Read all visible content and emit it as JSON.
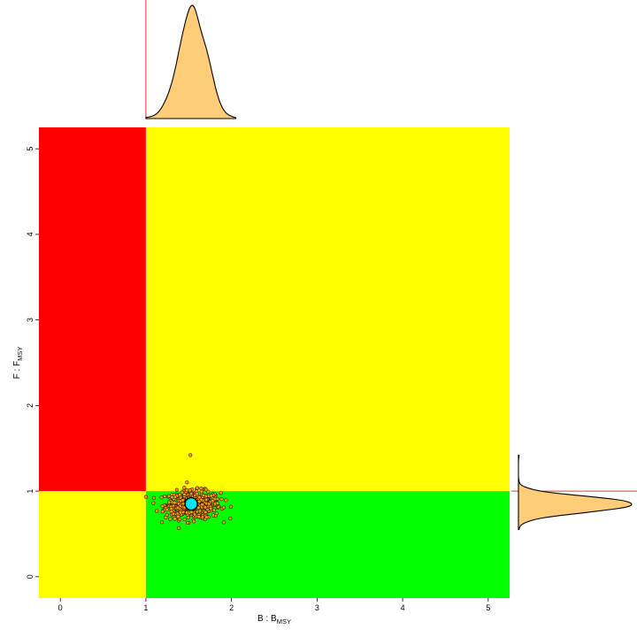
{
  "chart_data": {
    "type": "scatter",
    "title": "",
    "xlabel": {
      "main": "B : B",
      "sub": "MSY"
    },
    "ylabel": {
      "main": "F : F",
      "sub": "MSY"
    },
    "xlim": [
      -0.25,
      5.25
    ],
    "ylim": [
      -0.25,
      5.25
    ],
    "x_ticks": [
      "0",
      "1",
      "2",
      "3",
      "4",
      "5"
    ],
    "y_ticks": [
      "0",
      "1",
      "2",
      "3",
      "4",
      "5"
    ],
    "zones": [
      {
        "x": [
          -0.25,
          1
        ],
        "y": [
          1,
          5.25
        ],
        "color": "#ff0000"
      },
      {
        "x": [
          1,
          5.25
        ],
        "y": [
          1,
          5.25
        ],
        "color": "#ffff00"
      },
      {
        "x": [
          -0.25,
          1
        ],
        "y": [
          -0.25,
          1
        ],
        "color": "#ffff00"
      },
      {
        "x": [
          1,
          5.25
        ],
        "y": [
          -0.25,
          1
        ],
        "color": "#00ff00"
      }
    ],
    "reference_lines": {
      "b_ratio": 1,
      "f_ratio": 1,
      "color": "#ff3030"
    },
    "cloud": {
      "center": [
        1.55,
        0.84
      ],
      "spread": [
        0.16,
        0.08
      ],
      "x_range": [
        1.0,
        2.05
      ],
      "y_range": [
        0.55,
        1.42
      ],
      "n_points": 520,
      "fill": "#ff9900"
    },
    "estimate_point": {
      "x": 1.53,
      "y": 0.85,
      "color": "#00e5ee"
    },
    "marginal_density": {
      "fill": "#ffcc77"
    },
    "grid": false,
    "legend": "none"
  }
}
